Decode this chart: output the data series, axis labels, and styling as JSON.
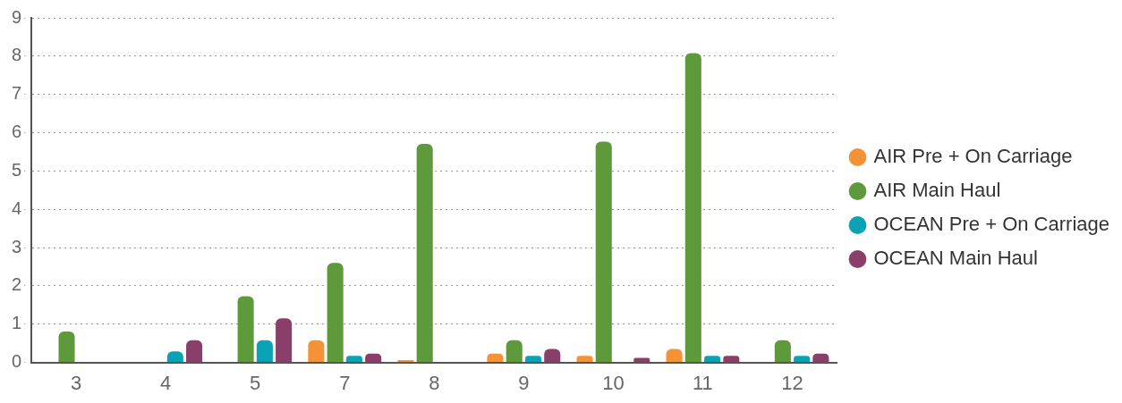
{
  "chart_data": {
    "type": "bar",
    "categories": [
      "3",
      "4",
      "5",
      "7",
      "8",
      "9",
      "10",
      "11",
      "12"
    ],
    "series": [
      {
        "name": "AIR Pre + On Carriage",
        "color": "#f39237",
        "values": [
          null,
          null,
          null,
          0.58,
          0.06,
          0.23,
          0.17,
          0.35,
          null
        ]
      },
      {
        "name": "AIR Main Haul",
        "color": "#5e9a3c",
        "values": [
          0.81,
          null,
          1.73,
          2.6,
          5.71,
          0.58,
          5.77,
          8.08,
          0.58
        ]
      },
      {
        "name": "OCEAN Pre + On Carriage",
        "color": "#0aa2b5",
        "values": [
          null,
          0.29,
          0.58,
          0.17,
          null,
          0.17,
          null,
          0.17,
          0.17
        ]
      },
      {
        "name": "OCEAN Main Haul",
        "color": "#8a3f6a",
        "values": [
          null,
          0.58,
          1.15,
          0.23,
          null,
          0.35,
          0.12,
          0.17,
          0.23
        ]
      }
    ],
    "ylim": [
      0,
      9
    ],
    "yticks": [
      0,
      1,
      2,
      3,
      4,
      5,
      6,
      7,
      8,
      9
    ],
    "grid": "y",
    "legend": "right"
  }
}
